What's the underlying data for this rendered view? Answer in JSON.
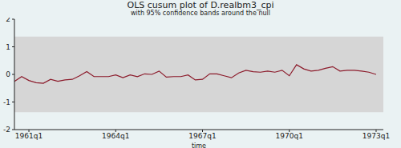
{
  "chart_data": {
    "type": "line",
    "title": "OLS cusum plot of D.realbm3_cpi",
    "subtitle": "with 95% confidence bands around the null",
    "x_label": "time",
    "x": [
      2,
      3,
      4,
      5,
      6,
      7,
      8,
      9,
      10,
      11,
      12,
      13,
      14,
      15,
      16,
      17,
      18,
      19,
      20,
      21,
      22,
      23,
      24,
      25,
      26,
      27,
      28,
      29,
      30,
      31,
      32,
      33,
      34,
      35,
      36,
      37,
      38,
      39,
      40,
      41,
      42,
      43,
      44,
      45,
      46,
      47,
      48,
      49,
      50,
      51,
      52
    ],
    "values": [
      -0.25,
      -0.08,
      -0.22,
      -0.3,
      -0.32,
      -0.18,
      -0.25,
      -0.2,
      -0.18,
      -0.05,
      0.1,
      -0.08,
      -0.08,
      -0.08,
      -0.02,
      -0.12,
      -0.02,
      -0.08,
      0.02,
      0.0,
      0.12,
      -0.1,
      -0.08,
      -0.08,
      -0.02,
      -0.2,
      -0.18,
      0.02,
      0.02,
      -0.05,
      -0.12,
      0.05,
      0.15,
      0.1,
      0.08,
      0.12,
      0.08,
      0.15,
      -0.05,
      0.35,
      0.2,
      0.12,
      0.15,
      0.22,
      0.28,
      0.12,
      0.15,
      0.15,
      0.12,
      0.08,
      0.0
    ],
    "color": "#8c1b2b",
    "band_lower": -1.37,
    "band_upper": 1.37,
    "xlim": [
      2,
      53
    ],
    "xticks": [
      {
        "value": 4,
        "label": "1961q1"
      },
      {
        "value": 16,
        "label": "1964q1"
      },
      {
        "value": 28,
        "label": "1967q1"
      },
      {
        "value": 40,
        "label": "1970q1"
      },
      {
        "value": 52,
        "label": "1973q1"
      }
    ],
    "ylim": [
      -2,
      2
    ],
    "yticks": [
      -2,
      -1,
      0,
      1,
      2
    ],
    "grid": false
  }
}
